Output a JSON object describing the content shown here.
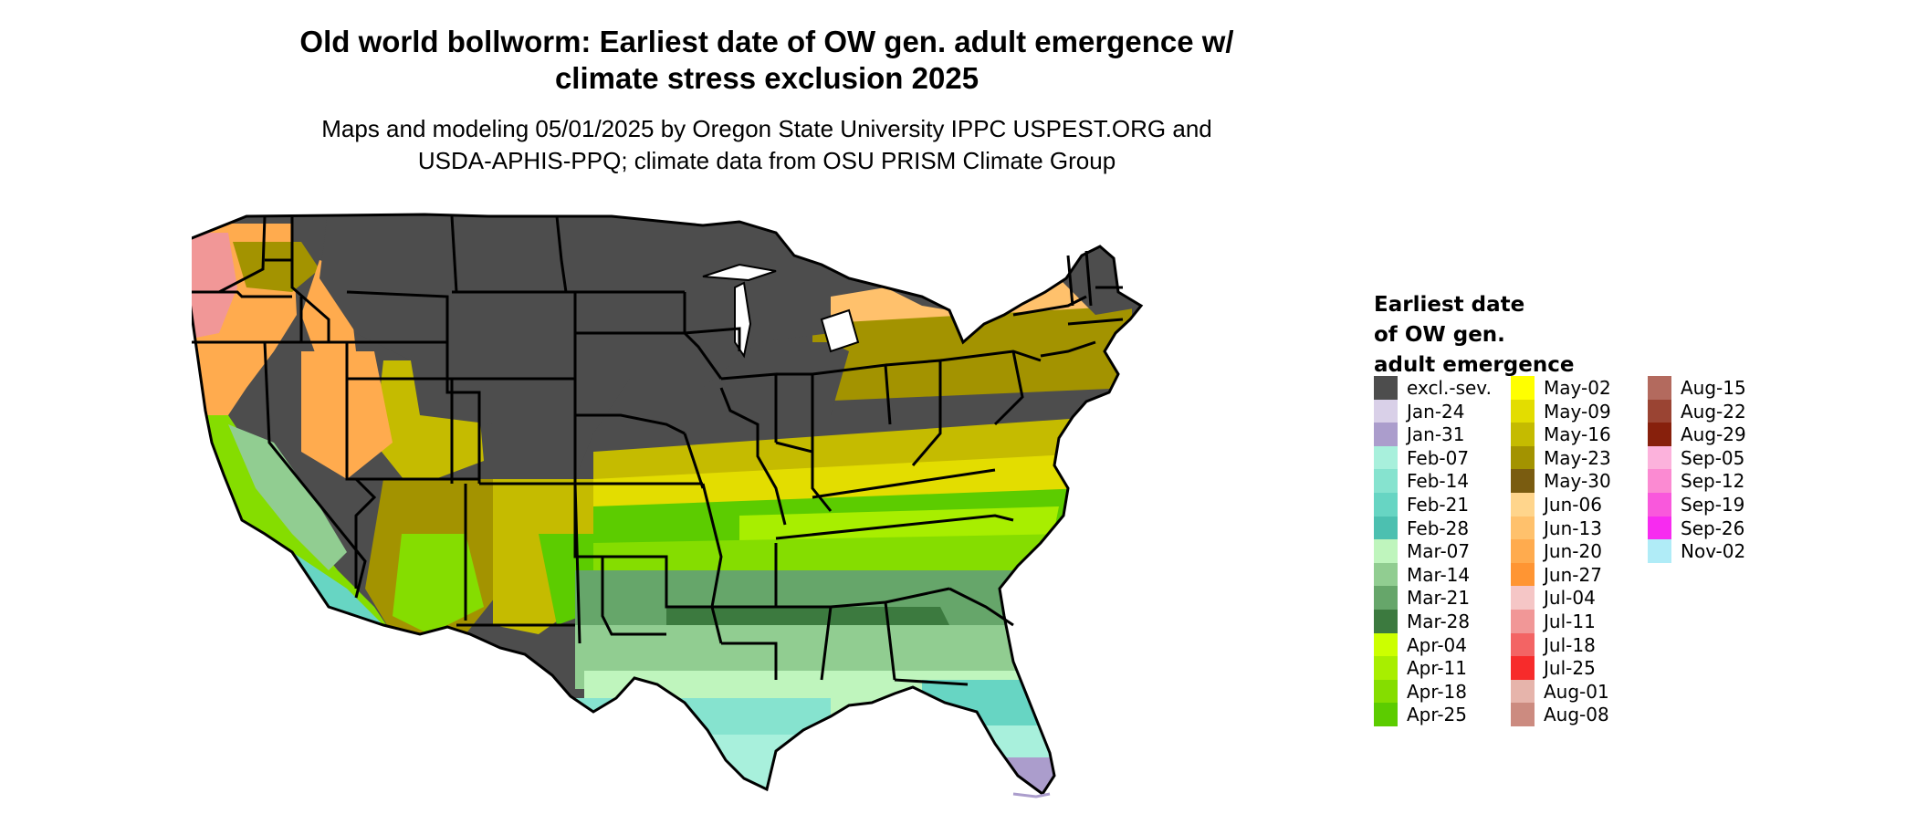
{
  "title": {
    "line1": "Old world bollworm: Earliest date of OW gen. adult emergence w/",
    "line2": "climate stress exclusion 2025"
  },
  "subtitle": {
    "line1": "Maps and modeling 05/01/2025 by Oregon State University IPPC USPEST.ORG and",
    "line2": "USDA-APHIS-PPQ; climate data from OSU PRISM Climate Group"
  },
  "legend": {
    "title": "Earliest date\nof OW gen.\nadult emergence",
    "columns": [
      [
        {
          "label": "excl.-sev.",
          "color": "#4d4d4d"
        },
        {
          "label": "Jan-24",
          "color": "#d9d0e8"
        },
        {
          "label": "Jan-31",
          "color": "#ab9dcc"
        },
        {
          "label": "Feb-07",
          "color": "#a8f0dc"
        },
        {
          "label": "Feb-14",
          "color": "#86e3cf"
        },
        {
          "label": "Feb-21",
          "color": "#67d5c3"
        },
        {
          "label": "Feb-28",
          "color": "#4cc0b0"
        },
        {
          "label": "Mar-07",
          "color": "#bff5bd"
        },
        {
          "label": "Mar-14",
          "color": "#91cd91"
        },
        {
          "label": "Mar-21",
          "color": "#66a66a"
        },
        {
          "label": "Mar-28",
          "color": "#3c7a3f"
        },
        {
          "label": "Apr-04",
          "color": "#ccff00"
        },
        {
          "label": "Apr-11",
          "color": "#a8ee00"
        },
        {
          "label": "Apr-18",
          "color": "#85dd00"
        },
        {
          "label": "Apr-25",
          "color": "#5ccc00"
        }
      ],
      [
        {
          "label": "May-02",
          "color": "#ffff00"
        },
        {
          "label": "May-09",
          "color": "#e3dd00"
        },
        {
          "label": "May-16",
          "color": "#c5bb00"
        },
        {
          "label": "May-23",
          "color": "#a39300"
        },
        {
          "label": "May-30",
          "color": "#7a5c10"
        },
        {
          "label": "Jun-06",
          "color": "#ffd58c"
        },
        {
          "label": "Jun-13",
          "color": "#ffc16c"
        },
        {
          "label": "Jun-20",
          "color": "#ffab4e"
        },
        {
          "label": "Jun-27",
          "color": "#ff9533"
        },
        {
          "label": "Jul-04",
          "color": "#f5c6c6"
        },
        {
          "label": "Jul-11",
          "color": "#f19797"
        },
        {
          "label": "Jul-18",
          "color": "#f36464"
        },
        {
          "label": "Jul-25",
          "color": "#f72b2b"
        },
        {
          "label": "Aug-01",
          "color": "#e6b4ab"
        },
        {
          "label": "Aug-08",
          "color": "#cc8b80"
        }
      ],
      [
        {
          "label": "Aug-15",
          "color": "#b36a5e"
        },
        {
          "label": "Aug-22",
          "color": "#9a4433"
        },
        {
          "label": "Aug-29",
          "color": "#87200c"
        },
        {
          "label": "Sep-05",
          "color": "#fcb2dc"
        },
        {
          "label": "Sep-12",
          "color": "#fb8ad2"
        },
        {
          "label": "Sep-19",
          "color": "#f958dc"
        },
        {
          "label": "Sep-26",
          "color": "#f72bf0"
        },
        {
          "label": "Nov-02",
          "color": "#b0ecf7"
        }
      ]
    ]
  },
  "map": {
    "colors": {
      "excluded": "#4d4d4d",
      "border": "#000000",
      "water": "#ffffff"
    }
  }
}
